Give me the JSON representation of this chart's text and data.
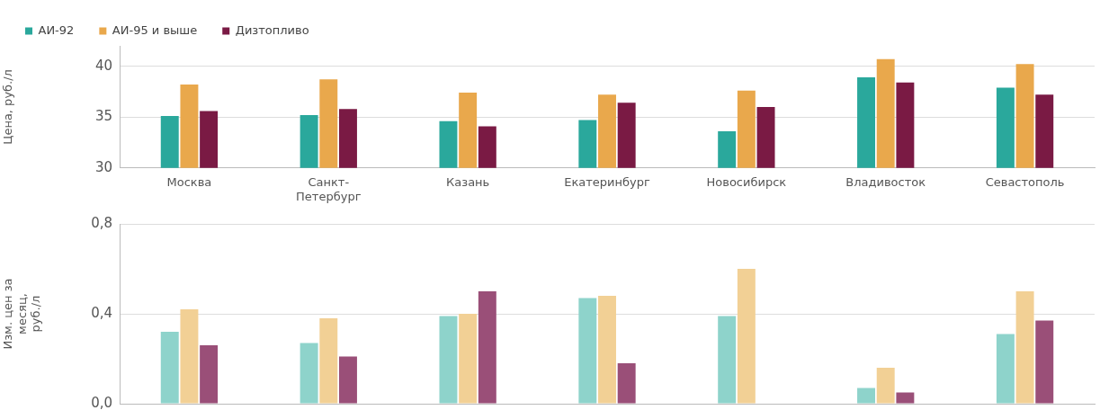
{
  "chart_data": [
    {
      "type": "bar",
      "ylabel": "Цена, руб./л",
      "categories": [
        "Москва",
        "Санкт-Петербург",
        "Казань",
        "Екатеринбург",
        "Новосибирск",
        "Владивосток",
        "Севастополь"
      ],
      "series": [
        {
          "name": "АИ-92",
          "color": "#2aa89c",
          "values": [
            35.1,
            35.2,
            34.6,
            34.7,
            33.6,
            38.9,
            37.9
          ]
        },
        {
          "name": "АИ-95 и выше",
          "color": "#e9a84c",
          "values": [
            38.2,
            38.7,
            37.4,
            37.2,
            37.6,
            40.7,
            40.2
          ]
        },
        {
          "name": "Дизтопливо",
          "color": "#7a1a44",
          "values": [
            35.6,
            35.8,
            34.1,
            36.4,
            36.0,
            38.4,
            37.2
          ]
        }
      ],
      "ylim": [
        30,
        42
      ],
      "yticks": [
        30,
        35,
        40
      ],
      "grid": "y",
      "legend": "top left"
    },
    {
      "type": "bar",
      "ylabel": "Изм. цен за месяц, руб./л",
      "categories": [
        null,
        null,
        null,
        null,
        null,
        null,
        null
      ],
      "series": [
        {
          "color": "#8ed3cb",
          "values": [
            0.32,
            0.27,
            0.39,
            0.47,
            0.39,
            0.07,
            0.31
          ]
        },
        {
          "color": "#f2d095",
          "values": [
            0.42,
            0.38,
            0.4,
            0.48,
            0.6,
            0.16,
            0.5
          ]
        },
        {
          "color": "#9a4f78",
          "values": [
            0.26,
            0.21,
            0.5,
            0.18,
            0,
            0.05,
            0.37
          ]
        }
      ],
      "ylim": [
        0,
        0.8
      ],
      "yticks": [
        {
          "value": 0,
          "label": "0,0"
        },
        {
          "value": 0.4,
          "label": "0,4"
        },
        {
          "value": 0.8,
          "label": "0,8"
        }
      ],
      "grid": "y",
      "tick_labels": "y"
    }
  ]
}
